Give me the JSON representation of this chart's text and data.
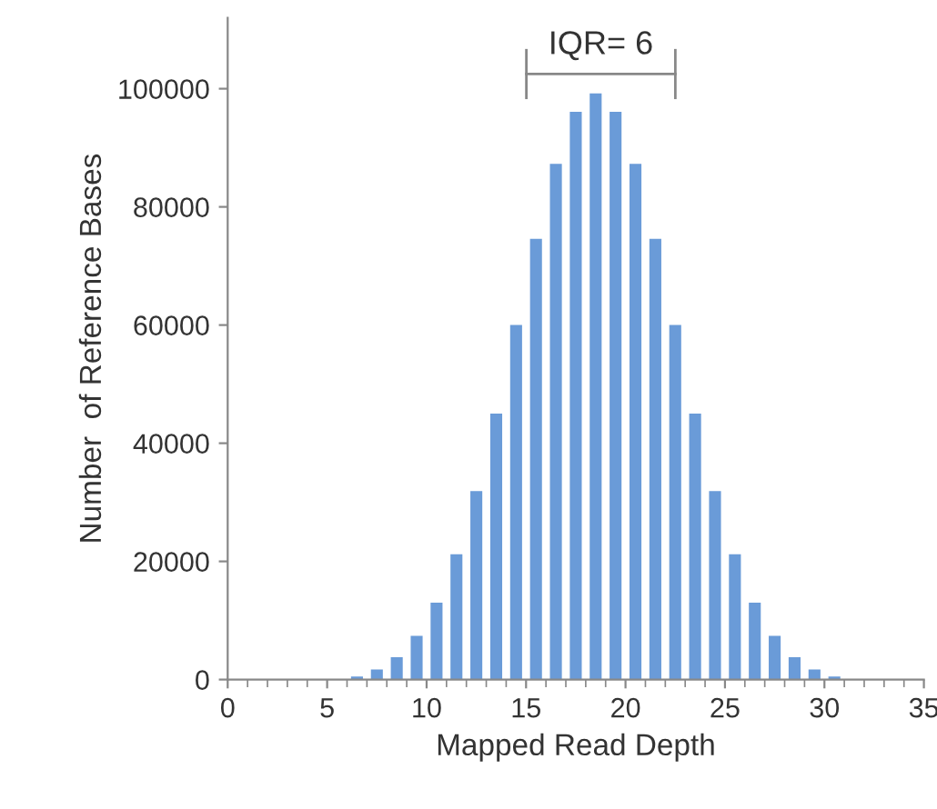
{
  "chart_data": {
    "type": "histogram",
    "xlabel": "Mapped Read Depth",
    "ylabel": "Number  of Reference Bases",
    "bins": [
      0,
      1,
      2,
      3,
      4,
      5,
      6,
      7,
      8,
      9,
      10,
      11,
      12,
      13,
      14,
      15,
      16,
      17,
      18,
      19,
      20,
      21,
      22,
      23,
      24,
      25,
      26,
      27,
      28,
      29,
      30,
      31,
      32,
      33,
      34,
      35
    ],
    "values": [
      null,
      null,
      null,
      null,
      null,
      null,
      500,
      1700,
      3800,
      7400,
      13000,
      21200,
      31900,
      45000,
      60000,
      74600,
      87300,
      96100,
      99200,
      96100,
      87300,
      74600,
      60000,
      45000,
      31900,
      21200,
      13000,
      7400,
      3800,
      1700,
      500,
      null,
      null,
      null,
      null
    ],
    "color": "#6a9bd8",
    "xlim": [
      0,
      35
    ],
    "xticks": [
      0,
      5,
      10,
      15,
      20,
      25,
      30,
      35
    ],
    "ylim": [
      0,
      112000
    ],
    "yticks": [
      0,
      20000,
      40000,
      60000,
      80000,
      100000
    ],
    "annotations": [
      "IQR= 6"
    ],
    "grid": false
  }
}
